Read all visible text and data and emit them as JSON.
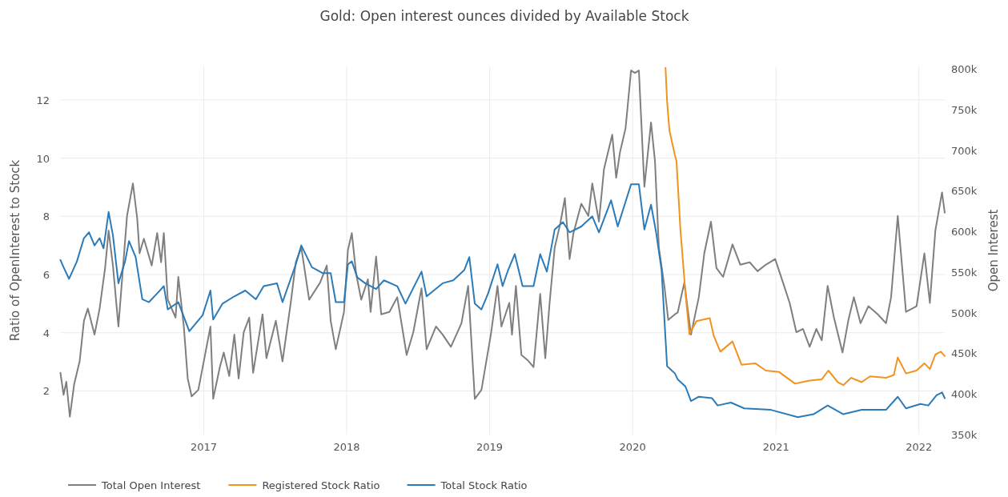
{
  "chart_data": {
    "type": "line",
    "title": "Gold: Open interest ounces divided by Available Stock",
    "ylabel": "Ratio of OpenInterest to Stock",
    "y2label": "Open Interest",
    "xlim": [
      "2016-01-01",
      "2022-03-08"
    ],
    "xticks": [
      "2017",
      "2018",
      "2019",
      "2020",
      "2021",
      "2022"
    ],
    "ylim": [
      0.5,
      13.15
    ],
    "yticks": [
      2,
      4,
      6,
      8,
      10,
      12
    ],
    "y2lim": [
      350000,
      803000
    ],
    "y2ticks": [
      {
        "value": 350000,
        "label": "350k"
      },
      {
        "value": 400000,
        "label": "400k"
      },
      {
        "value": 450000,
        "label": "450k"
      },
      {
        "value": 500000,
        "label": "500k"
      },
      {
        "value": 550000,
        "label": "550k"
      },
      {
        "value": 600000,
        "label": "600k"
      },
      {
        "value": 650000,
        "label": "650k"
      },
      {
        "value": 700000,
        "label": "700k"
      },
      {
        "value": 750000,
        "label": "750k"
      },
      {
        "value": 800000,
        "label": "800k"
      }
    ],
    "grid": true,
    "legend": "bottom left",
    "series": [
      {
        "name": "Total Open Interest",
        "color": "#7f7f7f",
        "axis": "y2",
        "x": [
          "2016-01-01",
          "2016-01-09",
          "2016-01-16",
          "2016-01-25",
          "2016-02-05",
          "2016-02-19",
          "2016-03-01",
          "2016-03-11",
          "2016-03-28",
          "2016-04-10",
          "2016-04-24",
          "2016-05-03",
          "2016-05-14",
          "2016-05-28",
          "2016-06-19",
          "2016-07-04",
          "2016-07-15",
          "2016-07-21",
          "2016-08-01",
          "2016-08-21",
          "2016-09-04",
          "2016-09-14",
          "2016-09-21",
          "2016-10-01",
          "2016-10-21",
          "2016-10-28",
          "2016-11-11",
          "2016-11-21",
          "2016-12-01",
          "2016-12-18",
          "2017-01-01",
          "2017-01-18",
          "2017-01-25",
          "2017-02-11",
          "2017-02-21",
          "2017-03-07",
          "2017-03-20",
          "2017-03-31",
          "2017-04-13",
          "2017-04-27",
          "2017-05-07",
          "2017-05-31",
          "2017-06-10",
          "2017-07-04",
          "2017-07-21",
          "2017-08-11",
          "2017-08-24",
          "2017-09-07",
          "2017-09-27",
          "2017-10-25",
          "2017-11-11",
          "2017-11-21",
          "2017-12-04",
          "2017-12-25",
          "2018-01-04",
          "2018-01-14",
          "2018-01-25",
          "2018-02-07",
          "2018-02-24",
          "2018-03-03",
          "2018-03-17",
          "2018-03-30",
          "2018-04-20",
          "2018-05-10",
          "2018-06-03",
          "2018-06-20",
          "2018-07-11",
          "2018-07-24",
          "2018-08-17",
          "2018-09-03",
          "2018-09-24",
          "2018-10-21",
          "2018-11-07",
          "2018-11-24",
          "2018-12-11",
          "2019-01-04",
          "2019-01-21",
          "2019-01-31",
          "2019-02-20",
          "2019-02-27",
          "2019-03-09",
          "2019-03-23",
          "2019-04-09",
          "2019-04-23",
          "2019-05-10",
          "2019-05-23",
          "2019-06-03",
          "2019-06-16",
          "2019-06-30",
          "2019-07-12",
          "2019-07-24",
          "2019-08-03",
          "2019-08-23",
          "2019-09-10",
          "2019-09-20",
          "2019-10-07",
          "2019-10-20",
          "2019-11-10",
          "2019-11-20",
          "2019-11-30",
          "2019-12-14",
          "2019-12-28",
          "2020-01-07",
          "2020-01-17",
          "2020-01-31",
          "2020-02-17",
          "2020-02-27",
          "2020-03-08",
          "2020-03-22",
          "2020-04-01",
          "2020-04-18",
          "2020-04-25",
          "2020-05-12",
          "2020-05-29",
          "2020-06-18",
          "2020-07-02",
          "2020-07-19",
          "2020-08-02",
          "2020-08-19",
          "2020-09-12",
          "2020-10-02",
          "2020-10-26",
          "2020-11-15",
          "2020-12-06",
          "2020-12-30",
          "2021-01-19",
          "2021-02-05",
          "2021-02-22",
          "2021-03-11",
          "2021-03-28",
          "2021-04-14",
          "2021-04-28",
          "2021-05-13",
          "2021-05-29",
          "2021-06-20",
          "2021-07-05",
          "2021-07-19",
          "2021-08-05",
          "2021-08-25",
          "2021-09-18",
          "2021-10-09",
          "2021-10-22",
          "2021-11-08",
          "2021-11-29",
          "2021-12-26",
          "2022-01-15",
          "2022-01-29",
          "2022-02-12",
          "2022-03-01",
          "2022-03-08"
        ],
        "values": [
          426000,
          399000,
          415000,
          372000,
          412000,
          440000,
          490000,
          505000,
          473000,
          505000,
          555000,
          601000,
          558000,
          483000,
          619000,
          659000,
          616000,
          573000,
          591000,
          558000,
          598000,
          562000,
          598000,
          516000,
          494000,
          544000,
          483000,
          419000,
          397000,
          405000,
          440000,
          483000,
          394000,
          433000,
          451000,
          422000,
          473000,
          419000,
          476000,
          494000,
          426000,
          498000,
          444000,
          490000,
          440000,
          512000,
          562000,
          580000,
          516000,
          537000,
          558000,
          490000,
          455000,
          501000,
          577000,
          598000,
          548000,
          516000,
          541000,
          501000,
          569000,
          498000,
          501000,
          519000,
          448000,
          476000,
          530000,
          455000,
          483000,
          473000,
          458000,
          487000,
          533000,
          394000,
          405000,
          473000,
          533000,
          483000,
          512000,
          473000,
          533000,
          448000,
          441000,
          433000,
          523000,
          444000,
          512000,
          580000,
          609000,
          641000,
          566000,
          598000,
          634000,
          619000,
          659000,
          612000,
          677000,
          719000,
          666000,
          698000,
          727000,
          798000,
          795000,
          798000,
          655000,
          734000,
          687000,
          580000,
          533000,
          491000,
          498000,
          500000,
          537000,
          473000,
          519000,
          573000,
          612000,
          555000,
          544000,
          584000,
          559000,
          562000,
          551000,
          559000,
          566000,
          537000,
          512000,
          476000,
          480000,
          458000,
          480000,
          466000,
          533000,
          494000,
          451000,
          491000,
          519000,
          487000,
          508000,
          498000,
          487000,
          519000,
          619000,
          501000,
          508000,
          573000,
          512000,
          601000,
          648000,
          623000
        ]
      },
      {
        "name": "Registered Stock Ratio",
        "color": "#f0931f",
        "x": [
          "2020-03-25",
          "2020-03-29",
          "2020-04-04",
          "2020-04-18",
          "2020-04-22",
          "2020-05-02",
          "2020-05-15",
          "2020-05-25",
          "2020-06-12",
          "2020-07-16",
          "2020-07-26",
          "2020-08-12",
          "2020-09-12",
          "2020-10-05",
          "2020-11-09",
          "2020-12-06",
          "2021-01-09",
          "2021-02-19",
          "2021-03-25",
          "2021-04-28",
          "2021-05-15",
          "2021-06-08",
          "2021-06-22",
          "2021-07-12",
          "2021-08-08",
          "2021-08-29",
          "2021-10-09",
          "2021-10-29",
          "2021-11-08",
          "2021-11-29",
          "2021-12-26",
          "2022-01-15",
          "2022-01-29",
          "2022-02-12",
          "2022-02-26",
          "2022-03-08"
        ],
        "values": [
          13.1,
          11.95,
          10.95,
          10.1,
          9.9,
          7.55,
          5.35,
          3.95,
          4.4,
          4.5,
          3.9,
          3.35,
          3.7,
          2.9,
          2.95,
          2.7,
          2.65,
          2.25,
          2.35,
          2.4,
          2.7,
          2.3,
          2.2,
          2.45,
          2.3,
          2.5,
          2.45,
          2.55,
          3.15,
          2.6,
          2.7,
          2.95,
          2.75,
          3.25,
          3.35,
          3.2
        ]
      },
      {
        "name": "Total Stock Ratio",
        "color": "#2b7bb9",
        "x": [
          "2016-01-01",
          "2016-01-09",
          "2016-01-23",
          "2016-02-12",
          "2016-03-01",
          "2016-03-14",
          "2016-03-28",
          "2016-04-10",
          "2016-04-20",
          "2016-05-03",
          "2016-05-14",
          "2016-05-28",
          "2016-06-14",
          "2016-06-24",
          "2016-07-11",
          "2016-07-28",
          "2016-08-14",
          "2016-09-04",
          "2016-09-21",
          "2016-10-01",
          "2016-10-28",
          "2016-11-25",
          "2016-12-29",
          "2017-01-18",
          "2017-01-25",
          "2017-02-18",
          "2017-03-20",
          "2017-04-17",
          "2017-05-14",
          "2017-06-03",
          "2017-07-07",
          "2017-07-21",
          "2017-08-24",
          "2017-09-07",
          "2017-10-04",
          "2017-10-31",
          "2017-11-21",
          "2017-12-04",
          "2017-12-25",
          "2018-01-04",
          "2018-01-14",
          "2018-01-28",
          "2018-02-17",
          "2018-03-17",
          "2018-04-06",
          "2018-05-10",
          "2018-05-31",
          "2018-07-11",
          "2018-07-24",
          "2018-09-03",
          "2018-09-30",
          "2018-10-28",
          "2018-11-10",
          "2018-11-24",
          "2018-12-11",
          "2018-12-28",
          "2019-01-21",
          "2019-02-03",
          "2019-02-17",
          "2019-03-06",
          "2019-03-26",
          "2019-04-23",
          "2019-05-10",
          "2019-05-27",
          "2019-06-16",
          "2019-07-07",
          "2019-07-24",
          "2019-08-23",
          "2019-09-20",
          "2019-10-07",
          "2019-11-07",
          "2019-11-24",
          "2019-12-28",
          "2020-01-17",
          "2020-01-31",
          "2020-02-17",
          "2020-03-01",
          "2020-03-15",
          "2020-03-29",
          "2020-04-18",
          "2020-04-25",
          "2020-05-15",
          "2020-05-29",
          "2020-06-18",
          "2020-07-22",
          "2020-08-05",
          "2020-09-08",
          "2020-10-12",
          "2020-12-19",
          "2021-02-26",
          "2021-04-07",
          "2021-05-13",
          "2021-06-22",
          "2021-08-08",
          "2021-10-09",
          "2021-11-08",
          "2021-11-29",
          "2022-01-05",
          "2022-01-25",
          "2022-02-15",
          "2022-03-01",
          "2022-03-08"
        ],
        "values": [
          6.5,
          6.25,
          5.85,
          6.45,
          7.25,
          7.45,
          7.0,
          7.25,
          6.9,
          8.15,
          7.35,
          5.7,
          6.45,
          7.15,
          6.6,
          5.15,
          5.05,
          5.35,
          5.6,
          4.8,
          5.05,
          4.05,
          4.6,
          5.45,
          4.45,
          5.0,
          5.25,
          5.45,
          5.15,
          5.6,
          5.7,
          5.05,
          6.35,
          7.0,
          6.25,
          6.05,
          6.05,
          5.05,
          5.05,
          6.35,
          6.45,
          5.9,
          5.7,
          5.5,
          5.8,
          5.6,
          5.0,
          6.1,
          5.25,
          5.7,
          5.8,
          6.15,
          6.6,
          5.0,
          4.8,
          5.35,
          6.35,
          5.6,
          6.15,
          6.7,
          5.6,
          5.6,
          6.7,
          6.1,
          7.55,
          7.8,
          7.45,
          7.65,
          8.0,
          7.45,
          8.55,
          7.65,
          9.1,
          9.1,
          7.55,
          8.4,
          7.45,
          6.15,
          2.85,
          2.6,
          2.4,
          2.15,
          1.65,
          1.8,
          1.75,
          1.5,
          1.6,
          1.4,
          1.35,
          1.1,
          1.2,
          1.5,
          1.2,
          1.35,
          1.35,
          1.8,
          1.4,
          1.55,
          1.5,
          1.85,
          1.95,
          1.75
        ]
      }
    ]
  }
}
